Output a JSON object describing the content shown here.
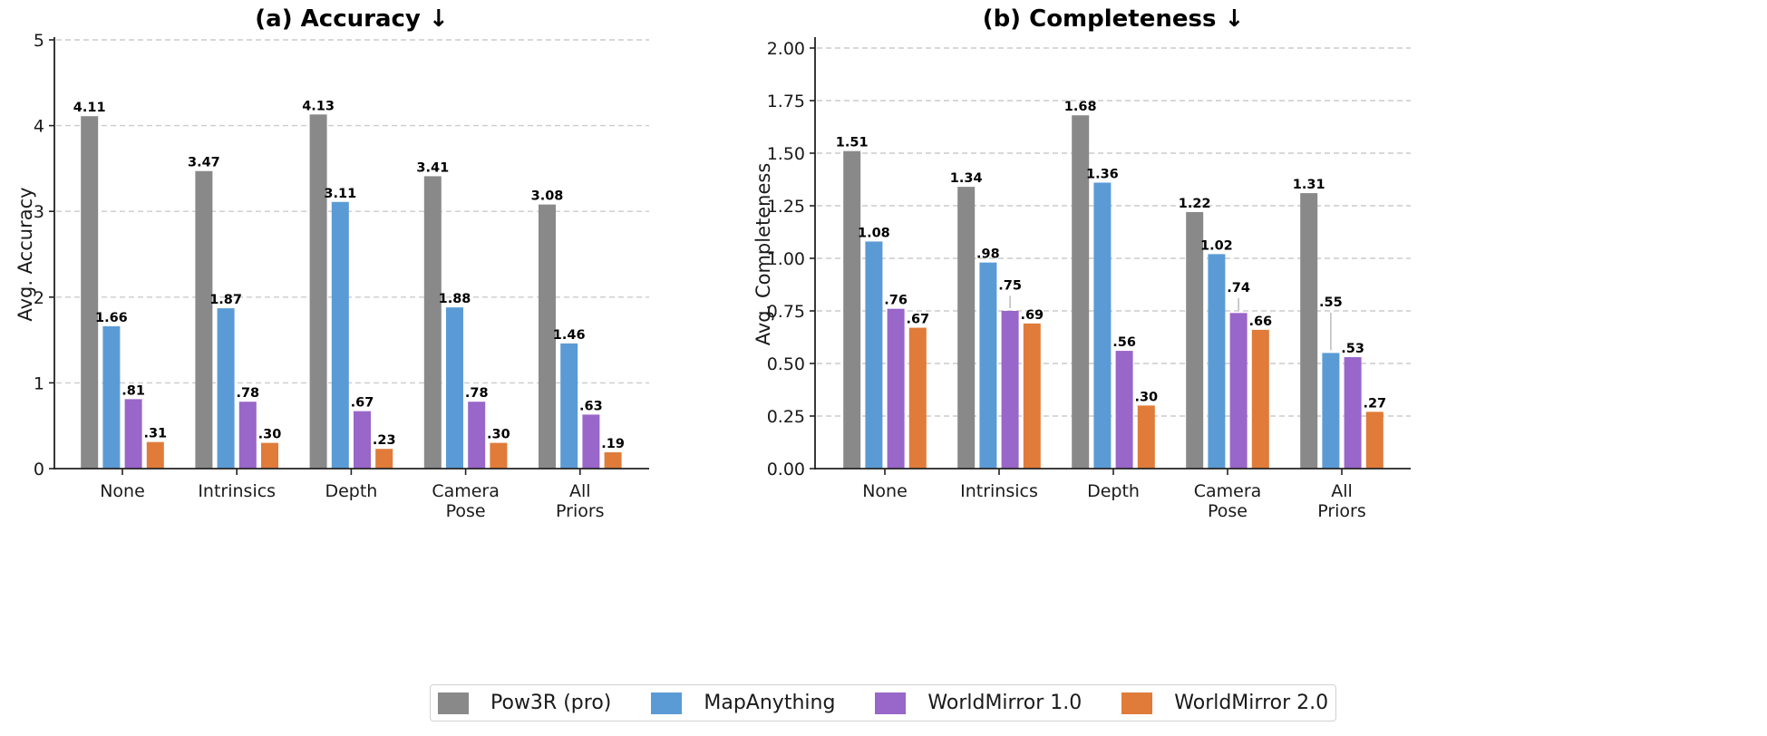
{
  "series_colors": {
    "Pow3R (pro)": "#898989",
    "MapAnything": "#5b9bd5",
    "WorldMirror 1.0": "#9966c9",
    "WorldMirror 2.0": "#e07b3a"
  },
  "legend": {
    "items": [
      {
        "label": "Pow3R (pro)",
        "color": "#898989"
      },
      {
        "label": "MapAnything",
        "color": "#5b9bd5"
      },
      {
        "label": "WorldMirror 1.0",
        "color": "#9966c9"
      },
      {
        "label": "WorldMirror 2.0",
        "color": "#e07b3a"
      }
    ],
    "placement": "bottom-center"
  },
  "chart_data": [
    {
      "type": "bar",
      "title": "(a) Accuracy ↓",
      "xlabel": "",
      "ylabel": "Avg. Accuracy",
      "ylim": [
        0,
        5
      ],
      "yticks": [
        0,
        1,
        2,
        3,
        4,
        5
      ],
      "ytick_labels": [
        "0",
        "1",
        "2",
        "3",
        "4",
        "5"
      ],
      "grid": "y-dashed",
      "categories": [
        [
          "None"
        ],
        [
          "Intrinsics"
        ],
        [
          "Depth"
        ],
        [
          "Camera",
          "Pose"
        ],
        [
          "All",
          "Priors"
        ]
      ],
      "series": [
        {
          "name": "Pow3R (pro)",
          "values": [
            4.11,
            3.47,
            4.13,
            3.41,
            3.08
          ],
          "labels": [
            "4.11",
            "3.47",
            "4.13",
            "3.41",
            "3.08"
          ]
        },
        {
          "name": "MapAnything",
          "values": [
            1.66,
            1.87,
            3.11,
            1.88,
            1.46
          ],
          "labels": [
            "1.66",
            "1.87",
            "3.11",
            "1.88",
            "1.46"
          ]
        },
        {
          "name": "WorldMirror 1.0",
          "values": [
            0.81,
            0.78,
            0.67,
            0.78,
            0.63
          ],
          "labels": [
            ".81",
            ".78",
            ".67",
            ".78",
            ".63"
          ]
        },
        {
          "name": "WorldMirror 2.0",
          "values": [
            0.31,
            0.3,
            0.23,
            0.3,
            0.19
          ],
          "labels": [
            ".31",
            ".30",
            ".23",
            ".30",
            ".19"
          ]
        }
      ],
      "leaders": []
    },
    {
      "type": "bar",
      "title": "(b) Completeness ↓",
      "xlabel": "",
      "ylabel": "Avg. Completeness",
      "ylim": [
        0,
        2.05
      ],
      "yticks": [
        0,
        0.25,
        0.5,
        0.75,
        1.0,
        1.25,
        1.5,
        1.75,
        2.0
      ],
      "ytick_labels": [
        "0.00",
        "0.25",
        "0.50",
        "0.75",
        "1.00",
        "1.25",
        "1.50",
        "1.75",
        "2.00"
      ],
      "grid": "y-dashed",
      "categories": [
        [
          "None"
        ],
        [
          "Intrinsics"
        ],
        [
          "Depth"
        ],
        [
          "Camera",
          "Pose"
        ],
        [
          "All",
          "Priors"
        ]
      ],
      "series": [
        {
          "name": "Pow3R (pro)",
          "values": [
            1.51,
            1.34,
            1.68,
            1.22,
            1.31
          ],
          "labels": [
            "1.51",
            "1.34",
            "1.68",
            "1.22",
            "1.31"
          ]
        },
        {
          "name": "MapAnything",
          "values": [
            1.08,
            0.98,
            1.36,
            1.02,
            0.55
          ],
          "labels": [
            "1.08",
            ".98",
            "1.36",
            "1.02",
            ".55"
          ]
        },
        {
          "name": "WorldMirror 1.0",
          "values": [
            0.76,
            0.75,
            0.56,
            0.74,
            0.53
          ],
          "labels": [
            ".76",
            ".75",
            ".56",
            ".74",
            ".53"
          ]
        },
        {
          "name": "WorldMirror 2.0",
          "values": [
            0.67,
            0.69,
            0.3,
            0.66,
            0.27
          ],
          "labels": [
            ".67",
            ".69",
            ".30",
            ".66",
            ".27"
          ]
        }
      ],
      "leaders": [
        {
          "series": 2,
          "category": 1,
          "label_value": 0.83
        },
        {
          "series": 2,
          "category": 3,
          "label_value": 0.82
        },
        {
          "series": 1,
          "category": 4,
          "label_value": 0.75
        }
      ]
    }
  ]
}
